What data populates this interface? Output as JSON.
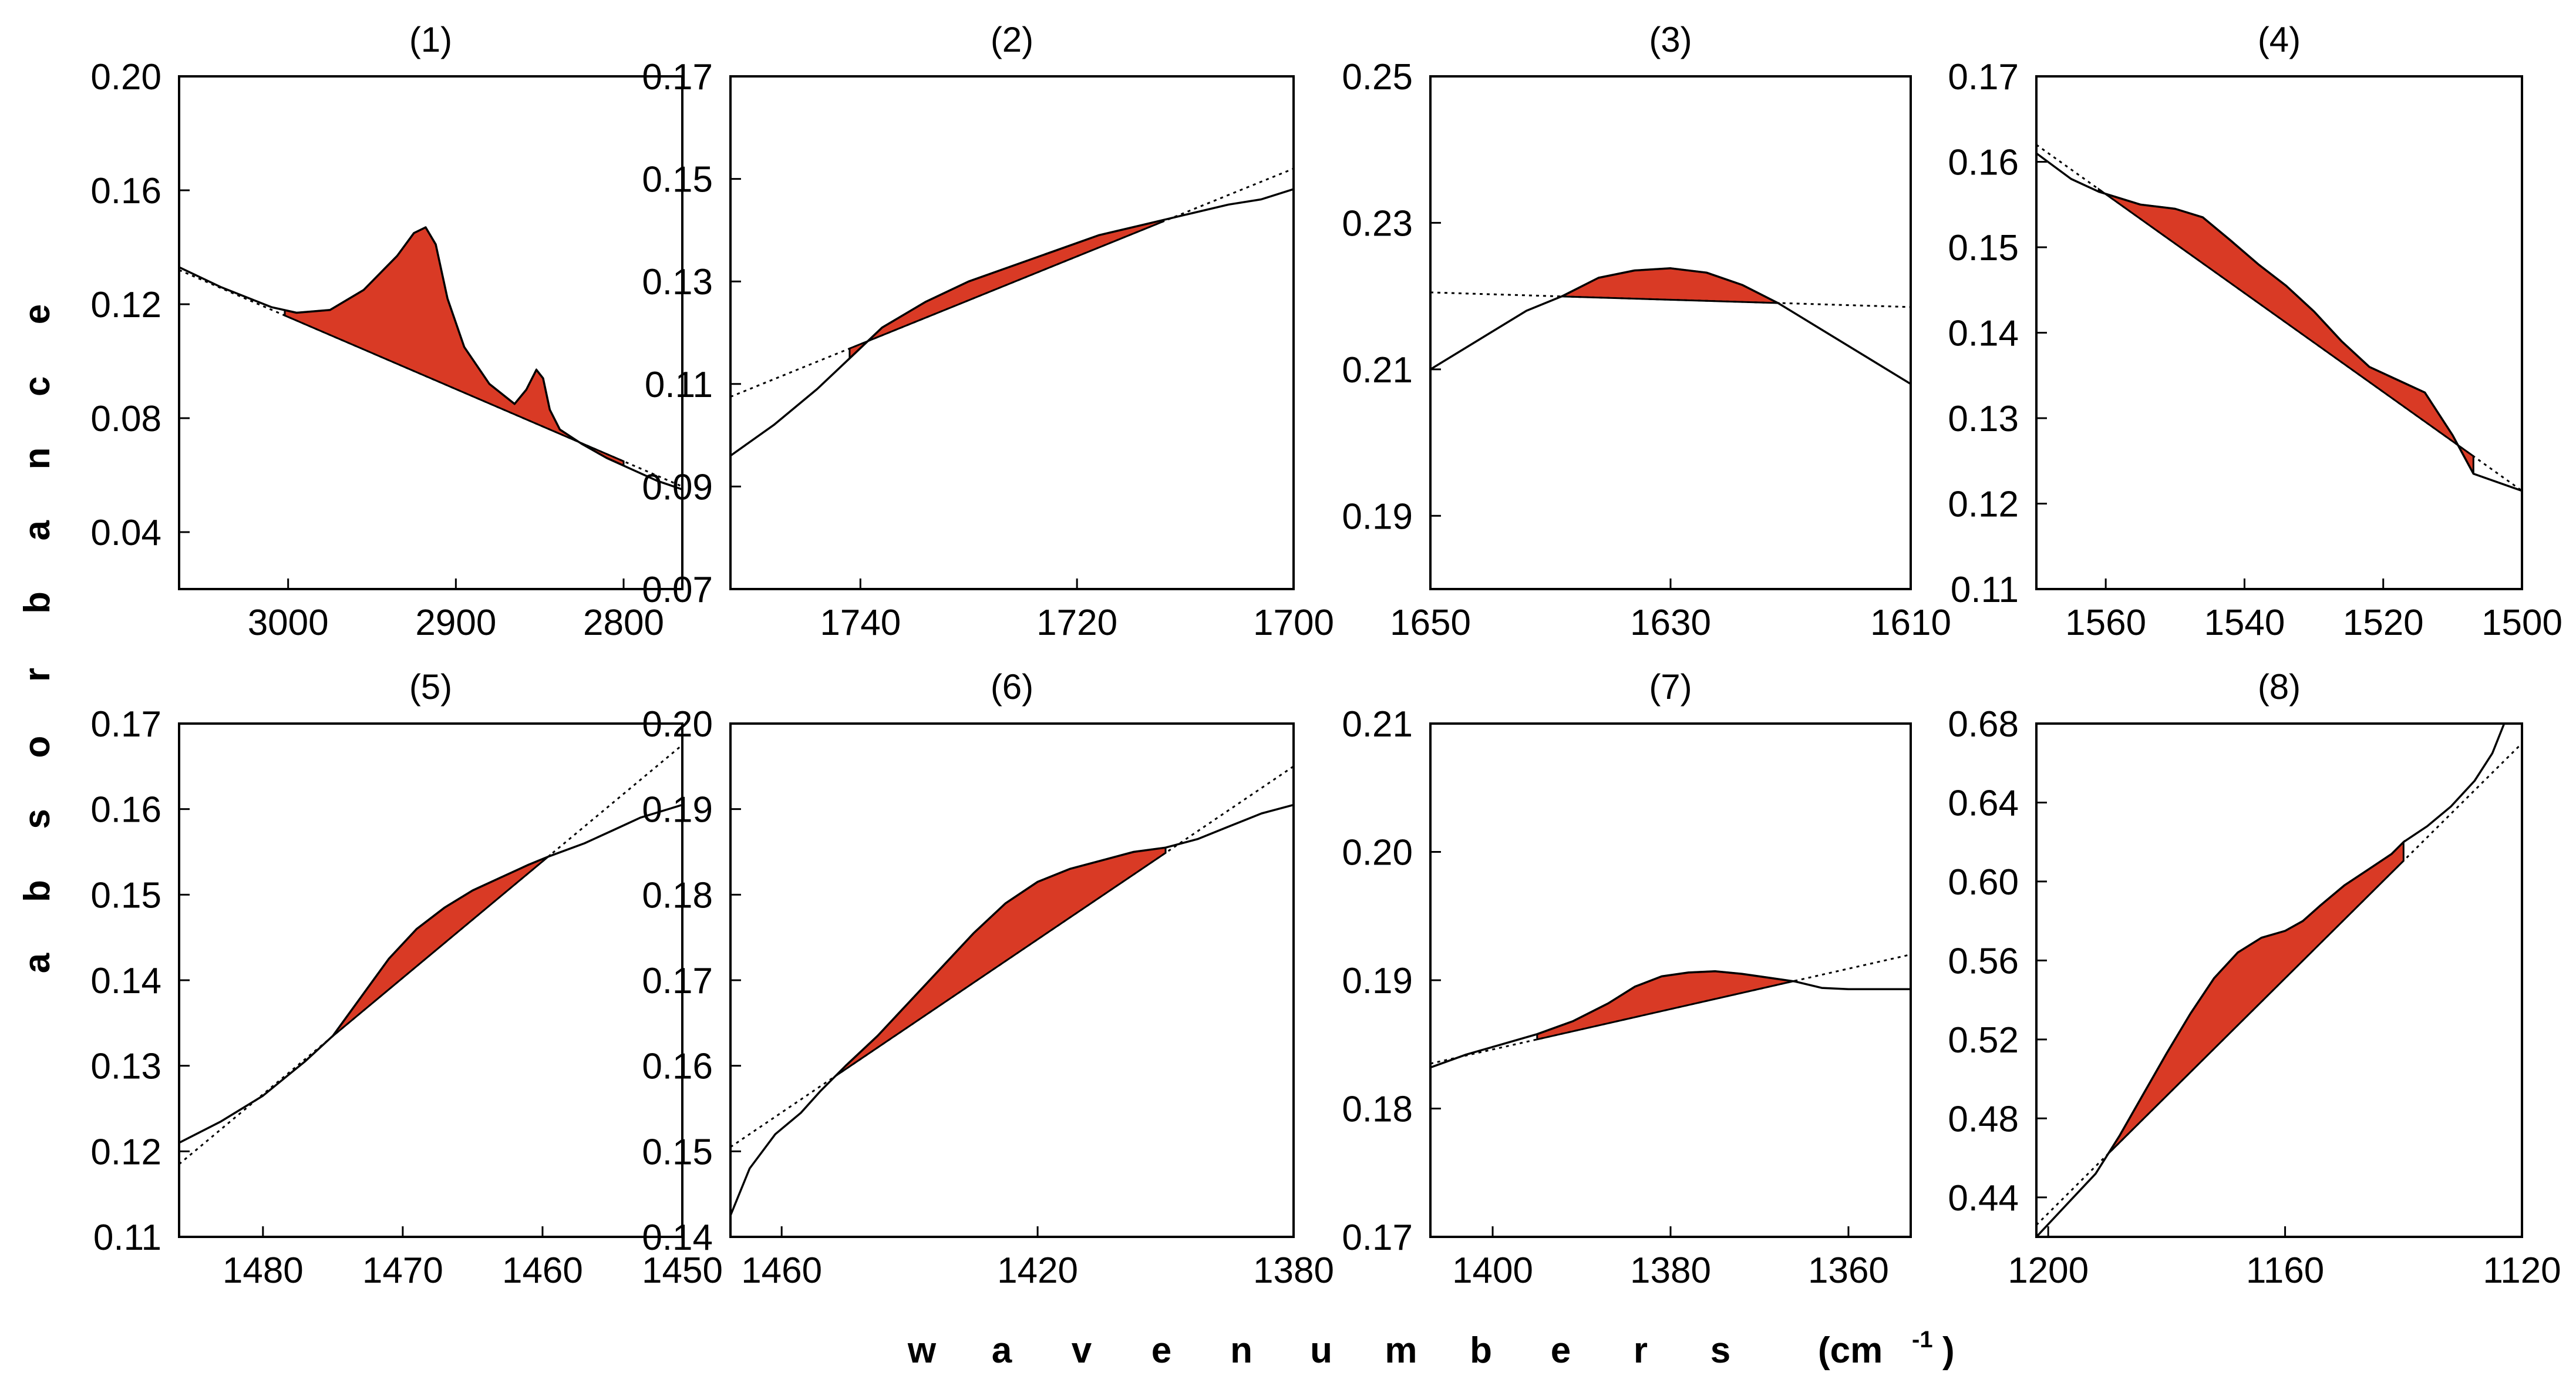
{
  "figure": {
    "ylabel": "absorbance",
    "xlabel": "wavenumbers",
    "xunit_prefix": "(cm",
    "xunit_sup": "-1",
    "xunit_suffix": ")",
    "fill_color": "#d93a25",
    "line_color": "#000000"
  },
  "chart_data": [
    {
      "type": "line",
      "title": "(1)",
      "xlim": [
        3065,
        2765
      ],
      "ylim": [
        0.02,
        0.2
      ],
      "xticks": [
        {
          "v": 3000,
          "label": "3000"
        },
        {
          "v": 2900,
          "label": "2900"
        },
        {
          "v": 2800,
          "label": "2800"
        }
      ],
      "yticks": [
        {
          "v": 0.04,
          "label": "0.04"
        },
        {
          "v": 0.08,
          "label": "0.08"
        },
        {
          "v": 0.12,
          "label": "0.12"
        },
        {
          "v": 0.16,
          "label": "0.16"
        },
        {
          "v": 0.2,
          "label": "0.20"
        }
      ],
      "series": [
        {
          "name": "spectrum",
          "x": [
            3065,
            3040,
            3010,
            2995,
            2975,
            2955,
            2935,
            2925,
            2918,
            2912,
            2905,
            2895,
            2880,
            2865,
            2858,
            2852,
            2848,
            2844,
            2838,
            2825,
            2810,
            2795,
            2780,
            2765
          ],
          "y": [
            0.133,
            0.126,
            0.119,
            0.117,
            0.118,
            0.125,
            0.137,
            0.145,
            0.147,
            0.141,
            0.122,
            0.105,
            0.092,
            0.085,
            0.09,
            0.097,
            0.094,
            0.083,
            0.076,
            0.071,
            0.066,
            0.062,
            0.058,
            0.055
          ]
        },
        {
          "name": "baseline",
          "x": [
            3065,
            2765
          ],
          "y": [
            0.132,
            0.056
          ]
        }
      ],
      "fill_range": [
        3002,
        2800
      ]
    },
    {
      "type": "line",
      "title": "(2)",
      "xlim": [
        1752,
        1700
      ],
      "ylim": [
        0.07,
        0.17
      ],
      "xticks": [
        {
          "v": 1740,
          "label": "1740"
        },
        {
          "v": 1720,
          "label": "1720"
        },
        {
          "v": 1700,
          "label": "1700"
        }
      ],
      "yticks": [
        {
          "v": 0.07,
          "label": "0.07"
        },
        {
          "v": 0.09,
          "label": "0.09"
        },
        {
          "v": 0.11,
          "label": "0.11"
        },
        {
          "v": 0.13,
          "label": "0.13"
        },
        {
          "v": 0.15,
          "label": "0.15"
        },
        {
          "v": 0.17,
          "label": "0.17"
        }
      ],
      "series": [
        {
          "name": "spectrum",
          "x": [
            1752,
            1748,
            1744,
            1741,
            1738,
            1734,
            1730,
            1726,
            1722,
            1718,
            1714,
            1710,
            1706,
            1703,
            1700
          ],
          "y": [
            0.096,
            0.102,
            0.109,
            0.115,
            0.121,
            0.126,
            0.13,
            0.133,
            0.136,
            0.139,
            0.141,
            0.143,
            0.145,
            0.146,
            0.148
          ]
        },
        {
          "name": "baseline",
          "x": [
            1752,
            1700
          ],
          "y": [
            0.1075,
            0.152
          ]
        }
      ],
      "fill_range": [
        1741,
        1712
      ]
    },
    {
      "type": "line",
      "title": "(3)",
      "xlim": [
        1650,
        1610
      ],
      "ylim": [
        0.18,
        0.25
      ],
      "xticks": [
        {
          "v": 1650,
          "label": "1650"
        },
        {
          "v": 1630,
          "label": "1630"
        },
        {
          "v": 1610,
          "label": "1610"
        }
      ],
      "yticks": [
        {
          "v": 0.19,
          "label": "0.19"
        },
        {
          "v": 0.21,
          "label": "0.21"
        },
        {
          "v": 0.23,
          "label": "0.23"
        },
        {
          "v": 0.25,
          "label": "0.25"
        }
      ],
      "series": [
        {
          "name": "spectrum",
          "x": [
            1650,
            1646,
            1642,
            1639,
            1636,
            1633,
            1630,
            1627,
            1624,
            1621,
            1618,
            1614,
            1610
          ],
          "y": [
            0.21,
            0.214,
            0.218,
            0.22,
            0.2225,
            0.2235,
            0.2238,
            0.2232,
            0.2215,
            0.219,
            0.216,
            0.212,
            0.208
          ]
        },
        {
          "name": "baseline",
          "x": [
            1650,
            1610
          ],
          "y": [
            0.2205,
            0.2185
          ]
        }
      ],
      "fill_range": [
        1639,
        1621
      ]
    },
    {
      "type": "line",
      "title": "(4)",
      "xlim": [
        1570,
        1500
      ],
      "ylim": [
        0.11,
        0.17
      ],
      "xticks": [
        {
          "v": 1560,
          "label": "1560"
        },
        {
          "v": 1540,
          "label": "1540"
        },
        {
          "v": 1520,
          "label": "1520"
        },
        {
          "v": 1500,
          "label": "1500"
        }
      ],
      "yticks": [
        {
          "v": 0.11,
          "label": "0.11"
        },
        {
          "v": 0.12,
          "label": "0.12"
        },
        {
          "v": 0.13,
          "label": "0.13"
        },
        {
          "v": 0.14,
          "label": "0.14"
        },
        {
          "v": 0.15,
          "label": "0.15"
        },
        {
          "v": 0.16,
          "label": "0.16"
        },
        {
          "v": 0.17,
          "label": "0.17"
        }
      ],
      "series": [
        {
          "name": "spectrum",
          "x": [
            1570,
            1565,
            1561,
            1555,
            1550,
            1546,
            1542,
            1538,
            1534,
            1530,
            1526,
            1522,
            1518,
            1514,
            1510,
            1507,
            1500
          ],
          "y": [
            0.161,
            0.158,
            0.1565,
            0.155,
            0.1545,
            0.1535,
            0.1508,
            0.148,
            0.1455,
            0.1425,
            0.139,
            0.136,
            0.1345,
            0.133,
            0.128,
            0.1235,
            0.1215
          ]
        },
        {
          "name": "baseline",
          "x": [
            1570,
            1500
          ],
          "y": [
            0.162,
            0.1215
          ]
        }
      ],
      "fill_range": [
        1561,
        1507
      ]
    },
    {
      "type": "line",
      "title": "(5)",
      "xlim": [
        1486,
        1450
      ],
      "ylim": [
        0.11,
        0.17
      ],
      "xticks": [
        {
          "v": 1480,
          "label": "1480"
        },
        {
          "v": 1470,
          "label": "1470"
        },
        {
          "v": 1460,
          "label": "1460"
        },
        {
          "v": 1450,
          "label": "1450"
        }
      ],
      "yticks": [
        {
          "v": 0.11,
          "label": "0.11"
        },
        {
          "v": 0.12,
          "label": "0.12"
        },
        {
          "v": 0.13,
          "label": "0.13"
        },
        {
          "v": 0.14,
          "label": "0.14"
        },
        {
          "v": 0.15,
          "label": "0.15"
        },
        {
          "v": 0.16,
          "label": "0.16"
        },
        {
          "v": 0.17,
          "label": "0.17"
        }
      ],
      "series": [
        {
          "name": "spectrum",
          "x": [
            1486,
            1483,
            1480,
            1477,
            1475,
            1473,
            1471,
            1469,
            1467,
            1465,
            1463,
            1461,
            1459.5,
            1457,
            1455,
            1453,
            1450
          ],
          "y": [
            0.121,
            0.1235,
            0.1265,
            0.1305,
            0.1335,
            0.138,
            0.1425,
            0.146,
            0.1485,
            0.1505,
            0.152,
            0.1535,
            0.1545,
            0.156,
            0.1575,
            0.159,
            0.1605
          ]
        },
        {
          "name": "baseline",
          "x": [
            1486,
            1450
          ],
          "y": [
            0.1185,
            0.1675
          ]
        }
      ],
      "fill_range": [
        1475,
        1459.5
      ]
    },
    {
      "type": "line",
      "title": "(6)",
      "xlim": [
        1468,
        1380
      ],
      "ylim": [
        0.14,
        0.2
      ],
      "xticks": [
        {
          "v": 1460,
          "label": "1460"
        },
        {
          "v": 1420,
          "label": "1420"
        },
        {
          "v": 1380,
          "label": "1380"
        }
      ],
      "yticks": [
        {
          "v": 0.14,
          "label": "0.14"
        },
        {
          "v": 0.15,
          "label": "0.15"
        },
        {
          "v": 0.16,
          "label": "0.16"
        },
        {
          "v": 0.17,
          "label": "0.17"
        },
        {
          "v": 0.18,
          "label": "0.18"
        },
        {
          "v": 0.19,
          "label": "0.19"
        },
        {
          "v": 0.2,
          "label": "0.20"
        }
      ],
      "series": [
        {
          "name": "spectrum",
          "x": [
            1468,
            1465,
            1461,
            1457,
            1454,
            1450,
            1445,
            1440,
            1435,
            1430,
            1425,
            1420,
            1415,
            1410,
            1405,
            1400,
            1395,
            1390,
            1385,
            1380
          ],
          "y": [
            0.1425,
            0.148,
            0.152,
            0.1545,
            0.157,
            0.16,
            0.1635,
            0.1675,
            0.1715,
            0.1755,
            0.179,
            0.1815,
            0.183,
            0.184,
            0.185,
            0.1855,
            0.1865,
            0.188,
            0.1895,
            0.1905
          ]
        },
        {
          "name": "baseline",
          "x": [
            1468,
            1380
          ],
          "y": [
            0.1505,
            0.195
          ]
        }
      ],
      "fill_range": [
        1451,
        1400
      ]
    },
    {
      "type": "line",
      "title": "(7)",
      "xlim": [
        1407,
        1353
      ],
      "ylim": [
        0.17,
        0.21
      ],
      "xticks": [
        {
          "v": 1400,
          "label": "1400"
        },
        {
          "v": 1380,
          "label": "1380"
        },
        {
          "v": 1360,
          "label": "1360"
        }
      ],
      "yticks": [
        {
          "v": 0.17,
          "label": "0.17"
        },
        {
          "v": 0.18,
          "label": "0.18"
        },
        {
          "v": 0.19,
          "label": "0.19"
        },
        {
          "v": 0.2,
          "label": "0.20"
        },
        {
          "v": 0.21,
          "label": "0.21"
        }
      ],
      "series": [
        {
          "name": "spectrum",
          "x": [
            1407,
            1403,
            1399,
            1395,
            1391,
            1387,
            1384,
            1381,
            1378,
            1375,
            1372,
            1369,
            1366,
            1363,
            1360,
            1357,
            1353
          ],
          "y": [
            0.1832,
            0.1842,
            0.185,
            0.1858,
            0.1868,
            0.1882,
            0.1895,
            0.1903,
            0.1906,
            0.1907,
            0.1905,
            0.1902,
            0.1899,
            0.1894,
            0.1893,
            0.1893,
            0.1893
          ]
        },
        {
          "name": "baseline",
          "x": [
            1407,
            1353
          ],
          "y": [
            0.1835,
            0.192
          ]
        }
      ],
      "fill_range": [
        1395,
        1366
      ]
    },
    {
      "type": "line",
      "title": "(8)",
      "xlim": [
        1202,
        1120
      ],
      "ylim": [
        0.42,
        0.68
      ],
      "xticks": [
        {
          "v": 1200,
          "label": "1200"
        },
        {
          "v": 1160,
          "label": "1160"
        },
        {
          "v": 1120,
          "label": "1120"
        }
      ],
      "yticks": [
        {
          "v": 0.44,
          "label": "0.44"
        },
        {
          "v": 0.48,
          "label": "0.48"
        },
        {
          "v": 0.52,
          "label": "0.52"
        },
        {
          "v": 0.56,
          "label": "0.56"
        },
        {
          "v": 0.6,
          "label": "0.60"
        },
        {
          "v": 0.64,
          "label": "0.64"
        },
        {
          "v": 0.68,
          "label": "0.68"
        }
      ],
      "series": [
        {
          "name": "spectrum",
          "x": [
            1202,
            1197,
            1192,
            1188,
            1184,
            1180,
            1176,
            1172,
            1168,
            1164,
            1160,
            1157,
            1154,
            1150,
            1146,
            1142,
            1140,
            1136,
            1132,
            1128,
            1125,
            1123
          ],
          "y": [
            0.42,
            0.436,
            0.452,
            0.471,
            0.492,
            0.513,
            0.533,
            0.551,
            0.564,
            0.5715,
            0.575,
            0.58,
            0.588,
            0.598,
            0.606,
            0.614,
            0.62,
            0.628,
            0.638,
            0.651,
            0.665,
            0.68
          ]
        },
        {
          "name": "baseline",
          "x": [
            1202,
            1120
          ],
          "y": [
            0.426,
            0.67
          ]
        }
      ],
      "fill_range": [
        1190,
        1140
      ]
    }
  ]
}
